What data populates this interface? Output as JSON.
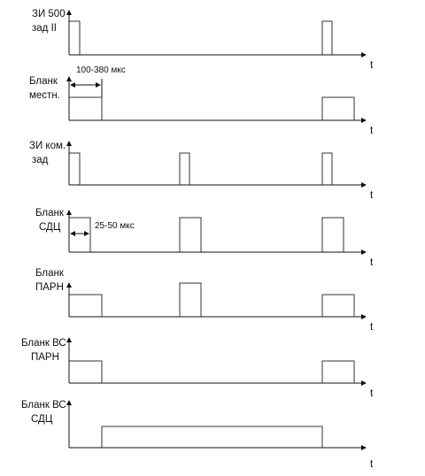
{
  "axis_label": "t",
  "rows": [
    {
      "id": "zi500",
      "label": [
        "ЗИ 500",
        "зад II"
      ]
    },
    {
      "id": "blank-mestn",
      "label": [
        "Бланк",
        "местн."
      ]
    },
    {
      "id": "zi-kom",
      "label": [
        "ЗИ ком.",
        "зад"
      ]
    },
    {
      "id": "blank-sdc",
      "label": [
        "Бланк",
        "СДЦ"
      ]
    },
    {
      "id": "blank-parn",
      "label": [
        "Бланк",
        "ПАРН"
      ]
    },
    {
      "id": "blank-vs-parn",
      "label": [
        "Бланк ВС",
        "ПАРН"
      ]
    },
    {
      "id": "blank-vs-sdc",
      "label": [
        "Бланк ВС",
        "СДЦ"
      ]
    }
  ],
  "annotations": {
    "blank_duration": "100-380 мкс",
    "sdc_duration": "25-50 мкс"
  }
}
